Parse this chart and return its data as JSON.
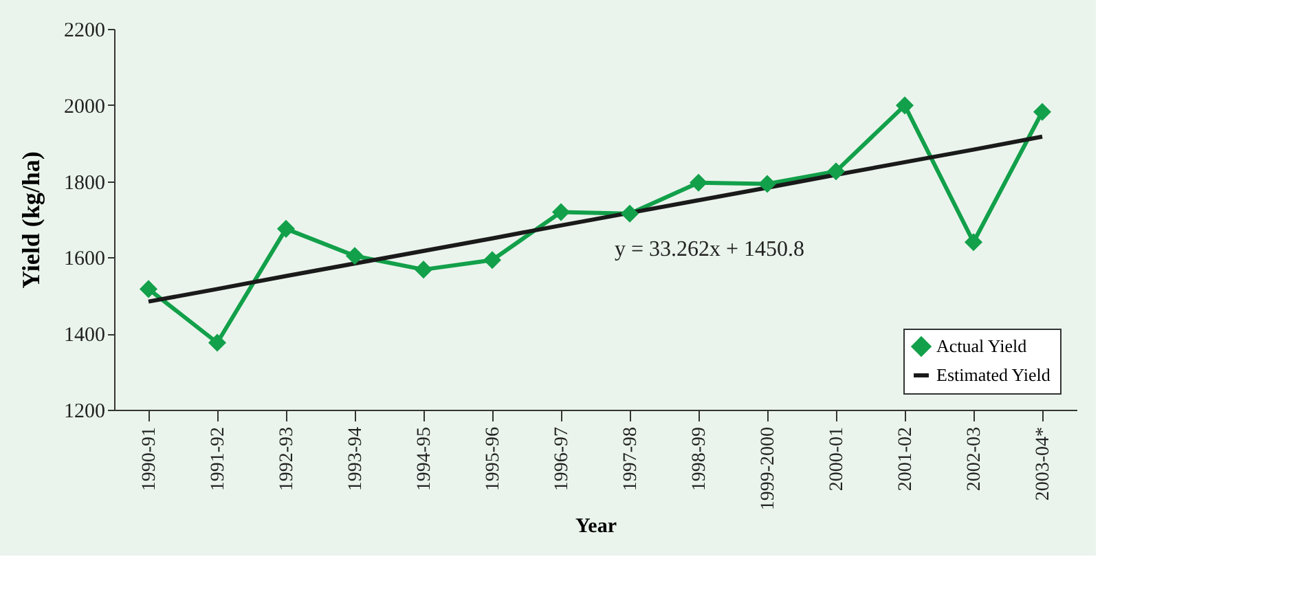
{
  "chart_data": {
    "type": "line",
    "xlabel": "Year",
    "ylabel": "Yield (kg/ha)",
    "categories": [
      "1990-91",
      "1991-92",
      "1992-93",
      "1993-94",
      "1994-95",
      "1995-96",
      "1996-97",
      "1997-98",
      "1998-99",
      "1999-2000",
      "2000-01",
      "2001-02",
      "2002-03",
      "2003-04*"
    ],
    "series": [
      {
        "name": "Actual Yield",
        "color": "#12a04a",
        "marker": "diamond",
        "values": [
          1517,
          1376,
          1675,
          1604,
          1568,
          1593,
          1719,
          1715,
          1796,
          1793,
          1826,
          1999,
          1640,
          1982
        ]
      },
      {
        "name": "Estimated Yield",
        "color": "#1a1a1a",
        "marker": "none",
        "values": [
          1484,
          1517,
          1551,
          1584,
          1617,
          1650,
          1684,
          1717,
          1750,
          1783,
          1817,
          1850,
          1883,
          1917
        ]
      }
    ],
    "ylim": [
      1200,
      2200
    ],
    "yticks": [
      1200,
      1400,
      1600,
      1800,
      2000,
      2200
    ],
    "annotations": [
      "y = 33.262x + 1450.8"
    ],
    "grid": false,
    "legend": "bottom right"
  }
}
